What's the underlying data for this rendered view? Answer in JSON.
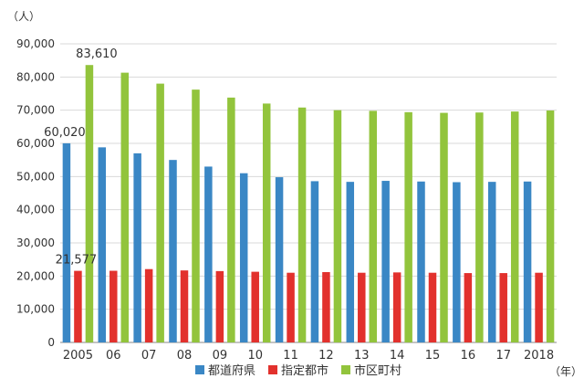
{
  "chart_data": {
    "type": "bar",
    "title": "",
    "xlabel": "",
    "ylabel": "",
    "y_unit": "（人）",
    "x_unit": "（年）",
    "ylim": [
      0,
      90000
    ],
    "yticks": [
      0,
      10000,
      20000,
      30000,
      40000,
      50000,
      60000,
      70000,
      80000,
      90000
    ],
    "ytick_labels": [
      "0",
      "10,000",
      "20,000",
      "30,000",
      "40,000",
      "50,000",
      "60,000",
      "70,000",
      "80,000",
      "90,000"
    ],
    "categories": [
      "2005",
      "06",
      "07",
      "08",
      "09",
      "10",
      "11",
      "12",
      "13",
      "14",
      "15",
      "16",
      "17",
      "2018"
    ],
    "grid": true,
    "legend_position": "bottom",
    "colors": [
      "#3a87c5",
      "#e2312d",
      "#92c43c"
    ],
    "series": [
      {
        "name": "都道府県",
        "values": [
          60020,
          58800,
          57000,
          55000,
          53000,
          51000,
          49800,
          48600,
          48400,
          48700,
          48500,
          48300,
          48400,
          48500
        ]
      },
      {
        "name": "指定都市",
        "values": [
          21577,
          21600,
          22100,
          21700,
          21500,
          21300,
          21000,
          21200,
          21000,
          21100,
          21000,
          20900,
          20900,
          21000
        ]
      },
      {
        "name": "市区町村",
        "values": [
          83610,
          81300,
          78000,
          76200,
          73800,
          72000,
          70800,
          70000,
          69800,
          69400,
          69200,
          69300,
          69600,
          69900
        ]
      }
    ],
    "annotations": [
      {
        "series": 0,
        "index": 0,
        "text": "60,020"
      },
      {
        "series": 1,
        "index": 0,
        "text": "21,577"
      },
      {
        "series": 2,
        "index": 0,
        "text": "83,610"
      }
    ]
  }
}
